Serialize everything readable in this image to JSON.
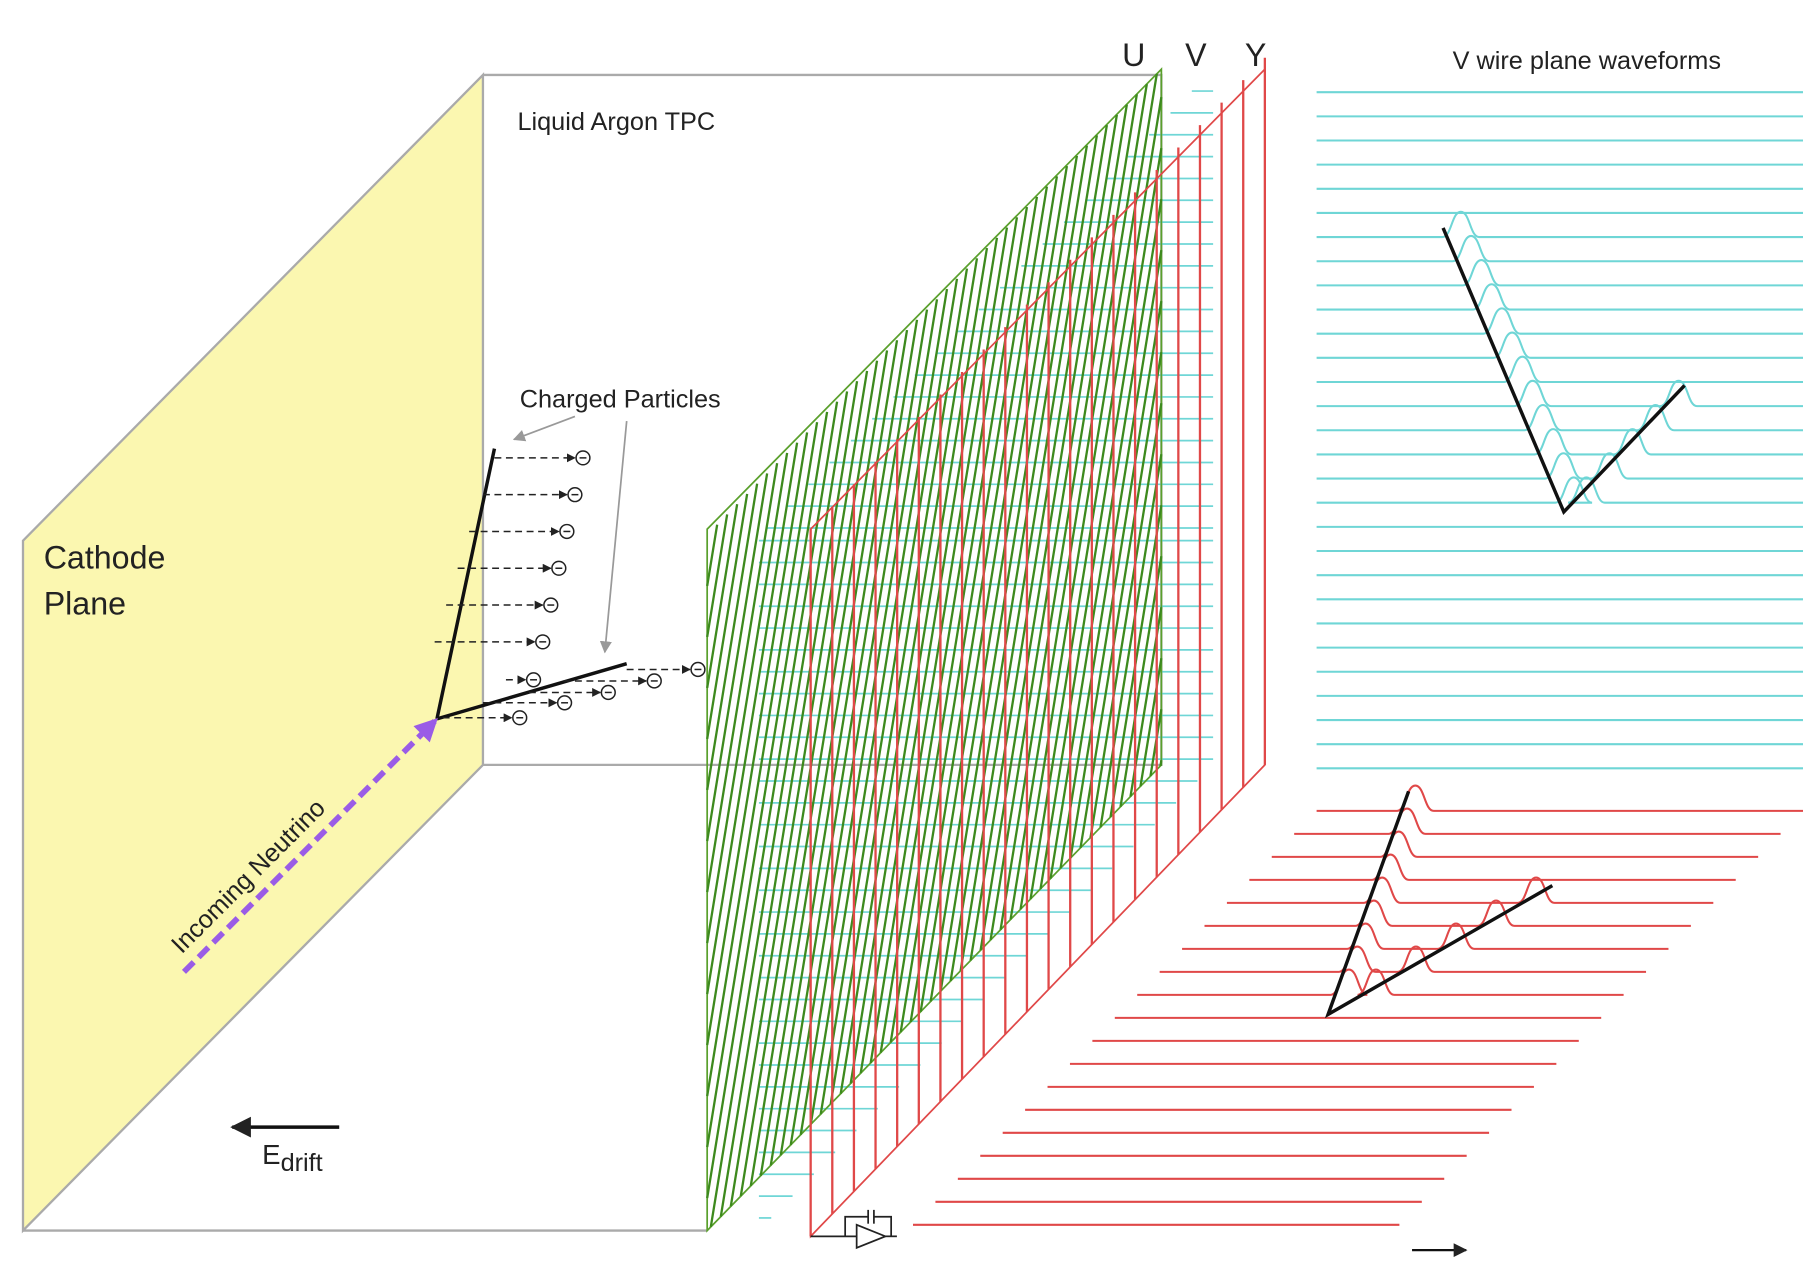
{
  "labels": {
    "u": "U",
    "v": "V",
    "y": "Y",
    "waveforms": "V wire plane waveforms",
    "tpc": "Liquid Argon TPC",
    "particles": "Charged Particles",
    "cathode": [
      "Cathode",
      "Plane"
    ],
    "neutrino": "Incoming Neutrino",
    "field": {
      "symbol": "E",
      "subscript": "drift"
    }
  }
}
